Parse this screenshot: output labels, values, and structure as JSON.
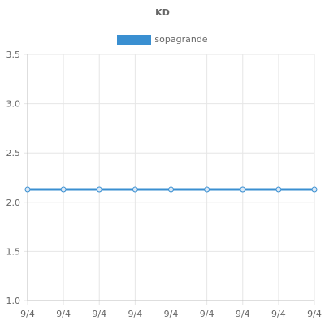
{
  "chart_data": {
    "type": "line",
    "title": "KD",
    "x": [
      "9/4",
      "9/4",
      "9/4",
      "9/4",
      "9/4",
      "9/4",
      "9/4",
      "9/4",
      "9/4"
    ],
    "series": [
      {
        "name": "sopagrande",
        "values": [
          2.13,
          2.13,
          2.13,
          2.13,
          2.13,
          2.13,
          2.13,
          2.13,
          2.13
        ],
        "color": "#3a8fd1"
      }
    ],
    "ylim": [
      1.0,
      3.5
    ],
    "yticks": [
      "1.0",
      "1.5",
      "2.0",
      "2.5",
      "3.0",
      "3.5"
    ],
    "xlabel": "",
    "ylabel": "",
    "grid": true,
    "legend_position": "top-center"
  }
}
